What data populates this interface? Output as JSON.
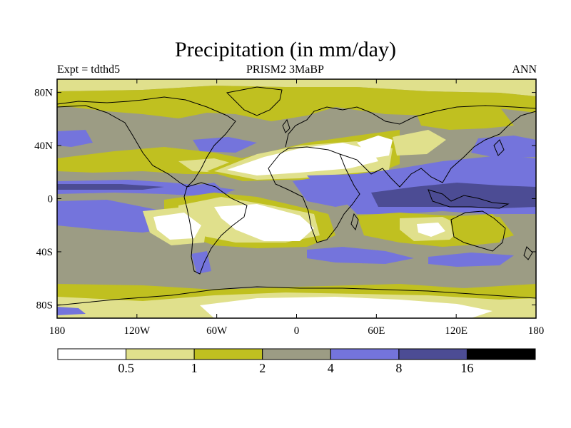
{
  "title": "Precipitation (in mm/day)",
  "subtitle_left": "Expt = tdthd5",
  "subtitle_center": "PRISM2     3MaBP",
  "subtitle_right": "ANN",
  "colors": {
    "lt05": "#ffffff",
    "c05_1": "#e0e08c",
    "c1_2": "#c0c020",
    "c2_4": "#9c9c84",
    "c4_8": "#7474dc",
    "c8_16": "#4c4c94",
    "gt16": "#000000",
    "coast": "#000000"
  },
  "map": {
    "lon_range": [
      -180,
      180
    ],
    "lat_range": [
      -90,
      90
    ],
    "y_ticks": [
      {
        "lat": 80,
        "label": "80N"
      },
      {
        "lat": 40,
        "label": "40N"
      },
      {
        "lat": 0,
        "label": "0"
      },
      {
        "lat": -40,
        "label": "40S"
      },
      {
        "lat": -80,
        "label": "80S"
      }
    ],
    "x_ticks": [
      {
        "lon": -180,
        "label": "180"
      },
      {
        "lon": -120,
        "label": "120W"
      },
      {
        "lon": -60,
        "label": "60W"
      },
      {
        "lon": 0,
        "label": "0"
      },
      {
        "lon": 60,
        "label": "60E"
      },
      {
        "lon": 120,
        "label": "120E"
      },
      {
        "lon": 180,
        "label": "180"
      }
    ]
  },
  "colorbar": {
    "boundaries": [
      "0.5",
      "1",
      "2",
      "4",
      "8",
      "16"
    ],
    "bins": [
      "lt05",
      "c05_1",
      "c1_2",
      "c2_4",
      "c4_8",
      "c8_16",
      "gt16"
    ]
  }
}
